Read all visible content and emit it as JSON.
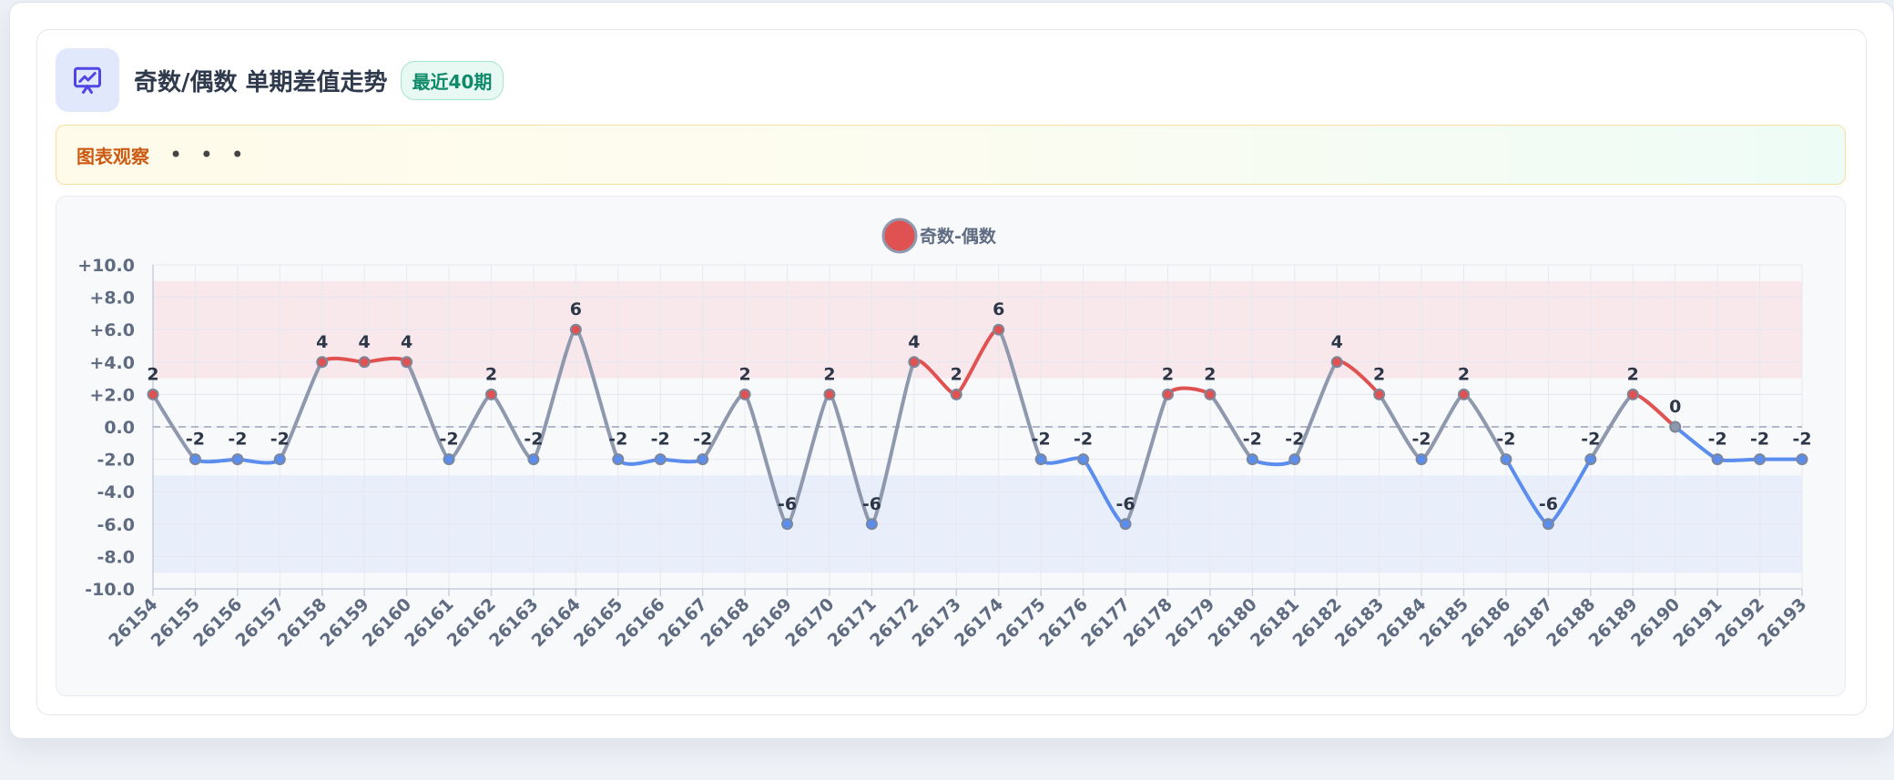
{
  "header": {
    "title": "奇数/偶数 单期差值走势",
    "badge": "最近40期"
  },
  "observation": {
    "label": "图表观察",
    "dots": "• • •"
  },
  "colors": {
    "positive": "#e05252",
    "negative": "#5b8def",
    "neutral": "#8e99ad",
    "positive_band": "#f8e8ec",
    "negative_band": "#e8eefa",
    "accent": "#4f46e5"
  },
  "chart_data": {
    "type": "line",
    "title": "",
    "xlabel": "",
    "ylabel": "",
    "legend": {
      "label": "奇数-偶数",
      "placement": "top-center"
    },
    "x": [
      "26154",
      "26155",
      "26156",
      "26157",
      "26158",
      "26159",
      "26160",
      "26161",
      "26162",
      "26163",
      "26164",
      "26165",
      "26166",
      "26167",
      "26168",
      "26169",
      "26170",
      "26171",
      "26172",
      "26173",
      "26174",
      "26175",
      "26176",
      "26177",
      "26178",
      "26179",
      "26180",
      "26181",
      "26182",
      "26183",
      "26184",
      "26185",
      "26186",
      "26187",
      "26188",
      "26189",
      "26190",
      "26191",
      "26192",
      "26193"
    ],
    "series": [
      {
        "name": "奇数-偶数",
        "values": [
          2,
          -2,
          -2,
          -2,
          4,
          4,
          4,
          -2,
          2,
          -2,
          6,
          -2,
          -2,
          -2,
          2,
          -6,
          2,
          -6,
          4,
          2,
          6,
          -2,
          -2,
          -6,
          2,
          2,
          -2,
          -2,
          4,
          2,
          -2,
          2,
          -2,
          -6,
          -2,
          2,
          0,
          -2,
          -2,
          -2
        ]
      }
    ],
    "ylim": [
      -10,
      10
    ],
    "yticks": [
      "+10.0",
      "+8.0",
      "+6.0",
      "+4.0",
      "+2.0",
      "0.0",
      "-2.0",
      "-4.0",
      "-6.0",
      "-8.0",
      "-10.0"
    ],
    "ytick_values": [
      10,
      8,
      6,
      4,
      2,
      0,
      -2,
      -4,
      -6,
      -8,
      -10
    ],
    "bands": [
      {
        "from": 3,
        "to": 9,
        "kind": "positive"
      },
      {
        "from": -9,
        "to": -3,
        "kind": "negative"
      }
    ],
    "zero_line": true,
    "grid": true
  }
}
